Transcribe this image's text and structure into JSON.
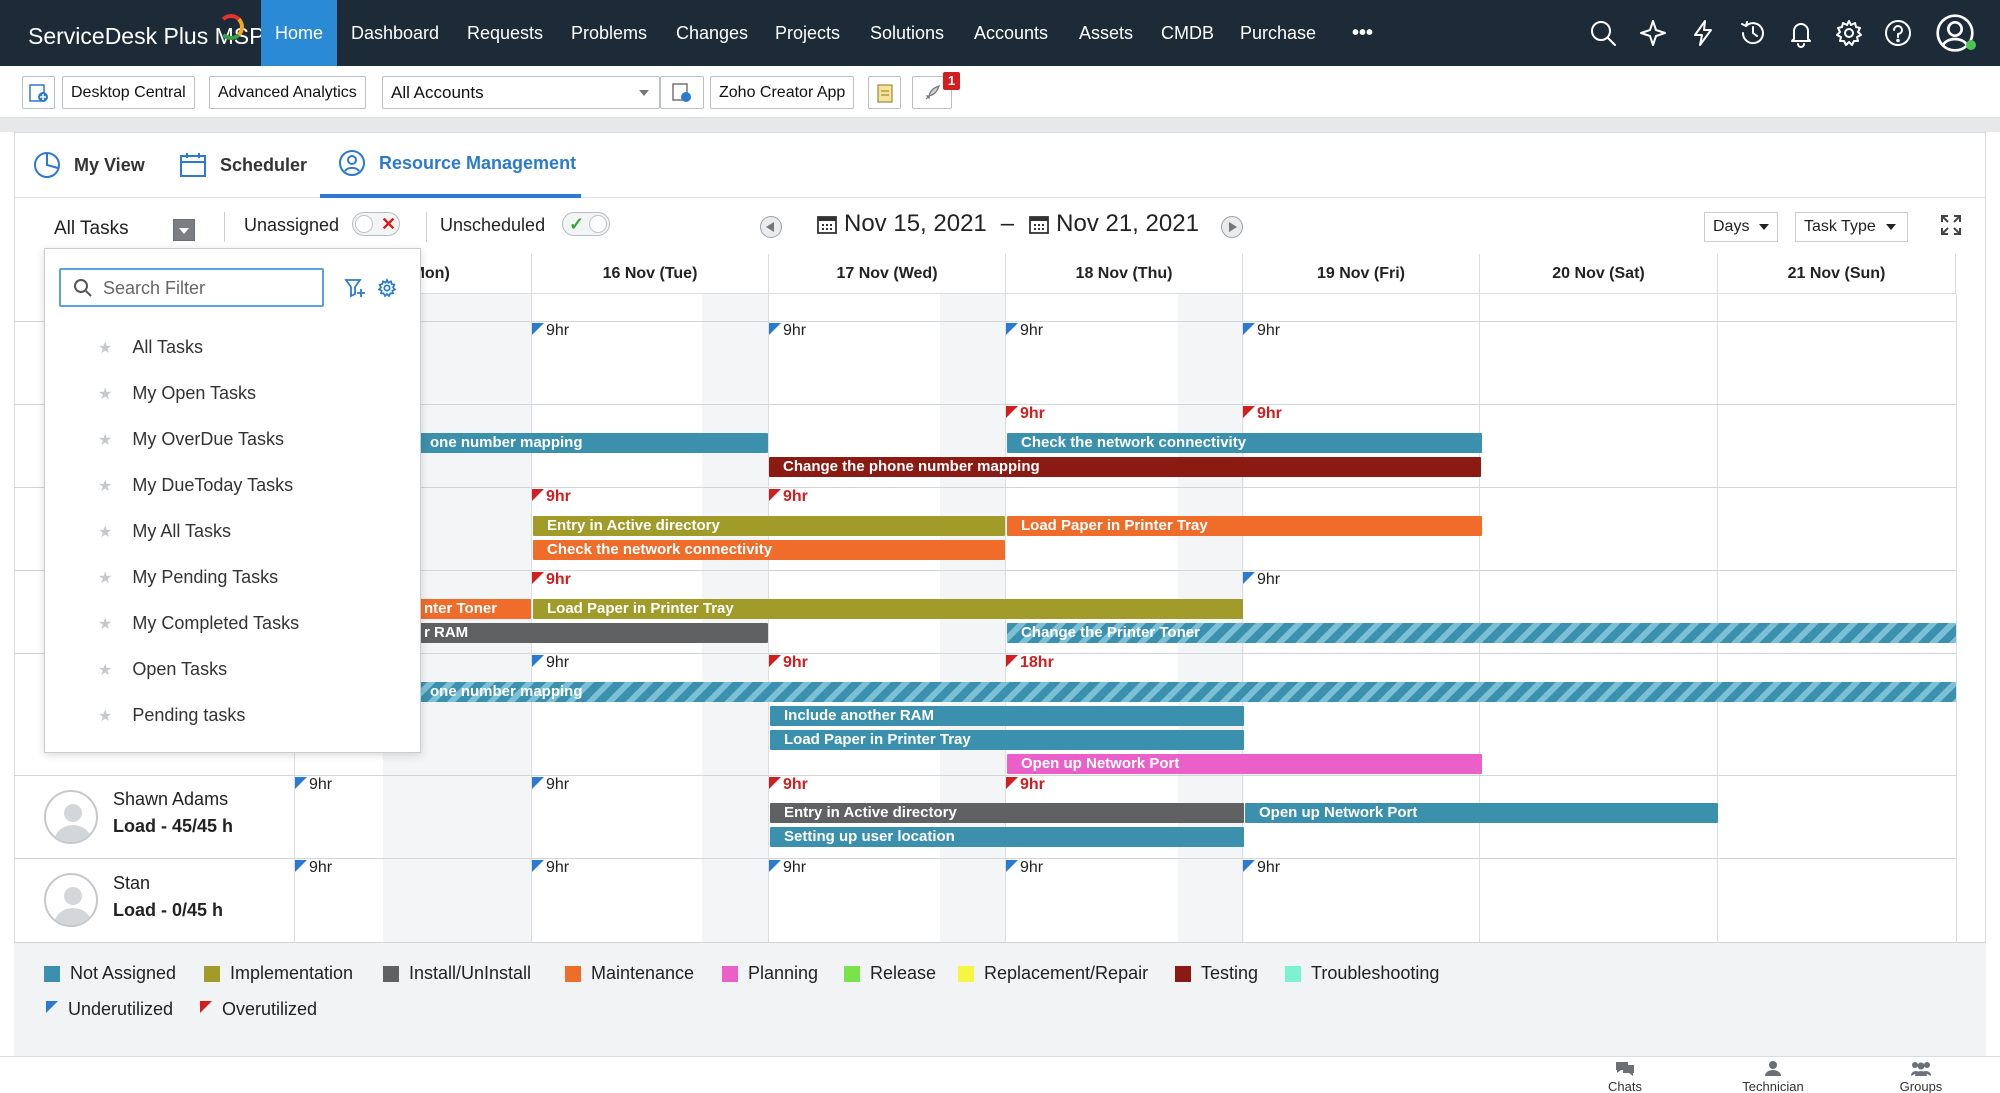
{
  "brand": {
    "name": "ServiceDesk Plus MSP"
  },
  "nav": {
    "items": [
      "Home",
      "Dashboard",
      "Requests",
      "Problems",
      "Changes",
      "Projects",
      "Solutions",
      "Accounts",
      "Assets",
      "CMDB",
      "Purchase"
    ],
    "more": "•••",
    "icons": [
      "search-icon",
      "sparkle-icon",
      "lightning-icon",
      "history-icon",
      "bell-icon",
      "gear-icon",
      "help-icon",
      "user-avatar-icon"
    ]
  },
  "toolbar": {
    "desktop_central": "Desktop Central",
    "advanced_analytics": "Advanced Analytics",
    "account_select": "All Accounts",
    "zoho_creator": "Zoho Creator App",
    "notification_count": "1"
  },
  "tabs": {
    "my_view": "My View",
    "scheduler": "Scheduler",
    "resource_management": "Resource Management"
  },
  "filters": {
    "task_view": "All Tasks",
    "unassigned": "Unassigned",
    "unscheduled": "Unscheduled",
    "date_from": "Nov 15, 2021",
    "date_sep": "–",
    "date_to": "Nov 21, 2021",
    "days": "Days",
    "task_type": "Task Type"
  },
  "columns": [
    "(Mon)",
    "16 Nov (Tue)",
    "17 Nov (Wed)",
    "18 Nov (Thu)",
    "19 Nov (Fri)",
    "20 Nov (Sat)",
    "21 Nov (Sun)"
  ],
  "flags": {
    "r1": [
      "9hr",
      "9hr",
      "9hr",
      "9hr"
    ],
    "r2": [
      "9hr",
      "9hr"
    ],
    "r3": [
      "9hr",
      "9hr"
    ],
    "r4": [
      "9hr",
      "9hr"
    ],
    "r5": [
      "9hr",
      "9hr",
      "18hr"
    ],
    "r6": [
      "9hr",
      "9hr",
      "9hr",
      "9hr"
    ],
    "r7": [
      "9hr",
      "9hr",
      "9hr",
      "9hr",
      "9hr"
    ]
  },
  "bars": {
    "b1": "one number mapping",
    "b2": "Check the network connectivity",
    "b3": "Change the phone number mapping",
    "b4": "Entry in Active directory",
    "b5": "Load Paper in Printer Tray",
    "b6": "Check the network connectivity",
    "b7": "nter Toner",
    "b8": "Load Paper in Printer Tray",
    "b9": "r RAM",
    "b10": "Change the Printer Toner",
    "b11": "one number mapping",
    "b12": "Include another RAM",
    "b13": "Load Paper in Printer Tray",
    "b14": "Open up Network Port",
    "b15": "Entry in Active directory",
    "b16": "Open up Network Port",
    "b17": "Setting up user location"
  },
  "technicians": [
    {
      "name": "Shawn Adams",
      "load": "Load - 45/45 h"
    },
    {
      "name": "Stan",
      "load": "Load - 0/45 h"
    }
  ],
  "dropdown": {
    "search_placeholder": "Search Filter",
    "items": [
      "All Tasks",
      "My Open Tasks",
      "My OverDue Tasks",
      "My DueToday Tasks",
      "My All Tasks",
      "My Pending Tasks",
      "My Completed Tasks",
      "Open Tasks",
      "Pending tasks"
    ]
  },
  "legend": {
    "items": [
      {
        "label": "Not Assigned",
        "color": "#3b91ad"
      },
      {
        "label": "Implementation",
        "color": "#a19b2a"
      },
      {
        "label": "Install/UnInstall",
        "color": "#5f6162"
      },
      {
        "label": "Maintenance",
        "color": "#ef6c2b"
      },
      {
        "label": "Planning",
        "color": "#ea5fc8"
      },
      {
        "label": "Release",
        "color": "#7be34a"
      },
      {
        "label": "Replacement/Repair",
        "color": "#f6f542"
      },
      {
        "label": "Testing",
        "color": "#8b1a13"
      },
      {
        "label": "Troubleshooting",
        "color": "#7cf2d2"
      }
    ],
    "underutilized": "Underutilized",
    "overutilized": "Overutilized"
  },
  "footer": {
    "chats": "Chats",
    "technician": "Technician",
    "groups": "Groups"
  }
}
